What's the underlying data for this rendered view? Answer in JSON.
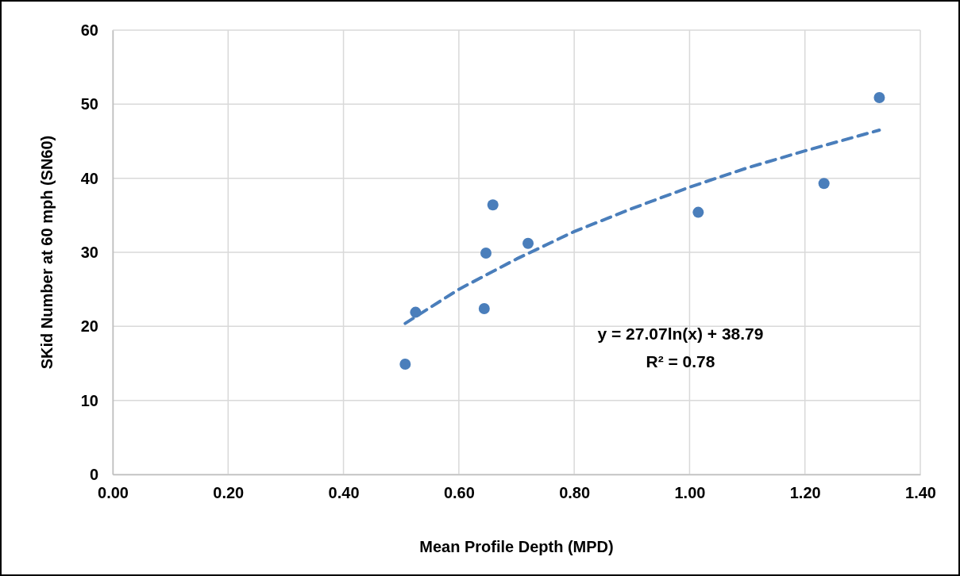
{
  "chart_data": {
    "type": "scatter",
    "xlabel": "Mean Profile Depth (MPD)",
    "ylabel": "SKid Number at 60 mph (SN60)",
    "x": [
      0.507,
      0.525,
      0.644,
      0.647,
      0.659,
      0.72,
      1.015,
      1.233,
      1.329
    ],
    "series": [
      {
        "color": "#4a7ebb",
        "values": [
          14.9,
          21.9,
          22.4,
          29.9,
          36.4,
          31.2,
          35.4,
          39.3,
          50.9
        ],
        "marker": "circle"
      },
      {
        "type": "line",
        "color": "#4a7ebb",
        "line_style": "dashed",
        "x": [
          0.507,
          0.6,
          0.7,
          0.8,
          0.9,
          1.0,
          1.1,
          1.2,
          1.329
        ],
        "values": [
          20.4,
          25.0,
          29.1,
          32.8,
          35.9,
          38.8,
          41.4,
          43.7,
          46.5
        ]
      }
    ],
    "xlim": [
      0,
      1.4
    ],
    "xticks": [
      {
        "value": 0,
        "label": "0.00"
      },
      {
        "value": 0.2,
        "label": "0.20"
      },
      {
        "value": 0.4,
        "label": "0.40"
      },
      {
        "value": 0.6,
        "label": "0.60"
      },
      {
        "value": 0.8,
        "label": "0.80"
      },
      {
        "value": 1.0,
        "label": "1.00"
      },
      {
        "value": 1.2,
        "label": "1.20"
      },
      {
        "value": 1.4,
        "label": "1.40"
      }
    ],
    "ylim": [
      0,
      60
    ],
    "yticks": [
      0,
      10,
      20,
      30,
      40,
      50,
      60
    ],
    "grid": true,
    "annotations": [
      "y = 27.07ln(x) + 38.79",
      "R² = 0.78"
    ]
  }
}
